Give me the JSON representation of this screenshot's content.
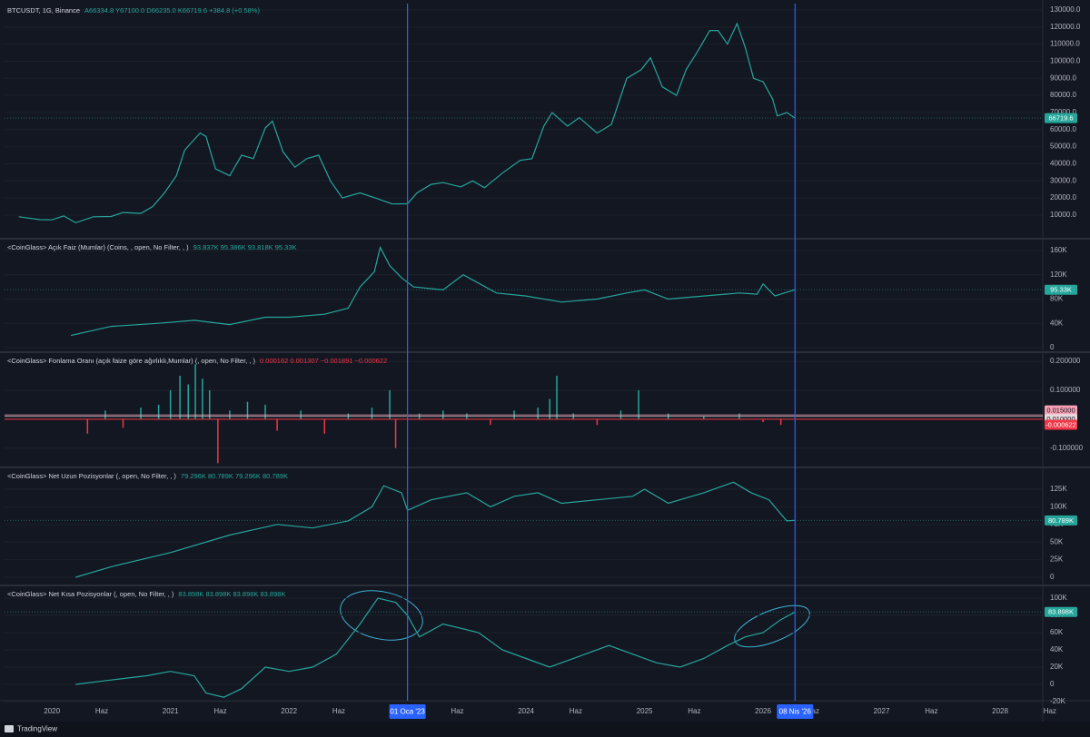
{
  "chart_data": [
    {
      "type": "line",
      "title": "BTCUSDT, 1G, Binance",
      "legend_values": "A66334.8 Y67100.0 D66235.0 K66719.6 +384.8 (+0.58%)",
      "color": "#26a69a",
      "x": [
        2019.72,
        2019.9,
        2020.0,
        2020.1,
        2020.2,
        2020.35,
        2020.5,
        2020.6,
        2020.75,
        2020.85,
        2020.95,
        2021.05,
        2021.12,
        2021.25,
        2021.3,
        2021.38,
        2021.5,
        2021.6,
        2021.7,
        2021.8,
        2021.86,
        2021.95,
        2022.05,
        2022.15,
        2022.25,
        2022.35,
        2022.45,
        2022.6,
        2022.75,
        2022.87,
        2023.0,
        2023.08,
        2023.2,
        2023.3,
        2023.45,
        2023.55,
        2023.65,
        2023.8,
        2023.95,
        2024.05,
        2024.15,
        2024.22,
        2024.35,
        2024.45,
        2024.6,
        2024.72,
        2024.85,
        2024.97,
        2025.05,
        2025.15,
        2025.27,
        2025.35,
        2025.45,
        2025.55,
        2025.62,
        2025.7,
        2025.78,
        2025.85,
        2025.92,
        2026.0,
        2026.08,
        2026.12,
        2026.2,
        2026.27
      ],
      "values": [
        9000,
        7300,
        7200,
        9500,
        5500,
        9000,
        9200,
        11500,
        11000,
        15000,
        23000,
        33000,
        48000,
        58000,
        56000,
        37000,
        33000,
        45000,
        43000,
        61000,
        65000,
        47000,
        38000,
        43000,
        45000,
        30000,
        20000,
        23000,
        19500,
        16500,
        16600,
        23000,
        28000,
        29000,
        26500,
        30000,
        26000,
        34500,
        42000,
        43000,
        62000,
        70000,
        62000,
        67000,
        58000,
        63000,
        90000,
        95000,
        102000,
        85000,
        80000,
        95000,
        106000,
        118000,
        118000,
        110000,
        122000,
        108000,
        90000,
        88000,
        78000,
        68000,
        70000,
        66719.6
      ],
      "ylim": [
        -3300,
        133700
      ],
      "yticks": [
        {
          "value": 10000,
          "label": "10000.0"
        },
        {
          "value": 20000,
          "label": "20000.0"
        },
        {
          "value": 30000,
          "label": "30000.0"
        },
        {
          "value": 40000,
          "label": "40000.0"
        },
        {
          "value": 50000,
          "label": "50000.0"
        },
        {
          "value": 60000,
          "label": "60000.0"
        },
        {
          "value": 70000,
          "label": "70000.0"
        },
        {
          "value": 80000,
          "label": "80000.0"
        },
        {
          "value": 90000,
          "label": "90000.0"
        },
        {
          "value": 100000,
          "label": "100000.0"
        },
        {
          "value": 110000,
          "label": "110000.0"
        },
        {
          "value": 120000,
          "label": "120000.0"
        },
        {
          "value": 130000,
          "label": "130000.0"
        }
      ],
      "last_value": {
        "value": 66719.6,
        "label": "66719.6",
        "color": "#26a69a"
      }
    },
    {
      "type": "line",
      "title": "<CoinGlass> Açık Faiz (Mumlar) (Coins, , open, No Filter, , )",
      "legend_values": "93.837K 95.386K 93.818K 95.33K",
      "color": "#26a69a",
      "x": [
        2020.16,
        2020.5,
        2020.9,
        2021.2,
        2021.5,
        2021.8,
        2022.0,
        2022.3,
        2022.5,
        2022.6,
        2022.72,
        2022.77,
        2022.85,
        2022.95,
        2023.05,
        2023.3,
        2023.47,
        2023.75,
        2024.0,
        2024.3,
        2024.6,
        2024.85,
        2025.0,
        2025.2,
        2025.5,
        2025.8,
        2025.95,
        2026.0,
        2026.1,
        2026.27
      ],
      "values": [
        20000,
        35000,
        40000,
        45000,
        38000,
        50000,
        50000,
        55000,
        65000,
        100000,
        125000,
        165000,
        135000,
        115000,
        100000,
        95000,
        120000,
        90000,
        85000,
        75000,
        80000,
        90000,
        95000,
        80000,
        85000,
        90000,
        88000,
        105000,
        85000,
        95330
      ],
      "ylim": [
        -7500,
        176400
      ],
      "yticks": [
        {
          "value": 0,
          "label": "0"
        },
        {
          "value": 40000,
          "label": "40K"
        },
        {
          "value": 80000,
          "label": "80K"
        },
        {
          "value": 120000,
          "label": "120K"
        },
        {
          "value": 160000,
          "label": "160K"
        }
      ],
      "last_value": {
        "value": 95330,
        "label": "95.33K",
        "color": "#26a69a"
      }
    },
    {
      "type": "bar",
      "title": "<CoinGlass> Fonlama Oranı (açık faize göre ağırlıklı,Mumlar) (, open, No Filter, , )",
      "legend_values": "0.000162 0.001307 −0.001891 −0.000622",
      "color": "#26a69a",
      "negative_color": "#f23645",
      "x": [
        2020.3,
        2020.45,
        2020.6,
        2020.75,
        2020.9,
        2021.0,
        2021.08,
        2021.15,
        2021.21,
        2021.27,
        2021.33,
        2021.4,
        2021.5,
        2021.65,
        2021.8,
        2021.9,
        2022.1,
        2022.3,
        2022.5,
        2022.7,
        2022.85,
        2022.9,
        2023.1,
        2023.3,
        2023.5,
        2023.7,
        2023.9,
        2024.1,
        2024.2,
        2024.26,
        2024.4,
        2024.6,
        2024.8,
        2024.95,
        2025.2,
        2025.5,
        2025.8,
        2026.0,
        2026.15,
        2026.27
      ],
      "values": [
        -0.05,
        0.03,
        -0.03,
        0.04,
        0.05,
        0.1,
        0.15,
        0.12,
        0.19,
        0.14,
        0.1,
        -0.152,
        0.03,
        0.06,
        0.05,
        -0.04,
        0.03,
        -0.05,
        0.02,
        0.04,
        0.1,
        -0.1,
        0.02,
        0.03,
        0.02,
        -0.02,
        0.03,
        0.04,
        0.07,
        0.15,
        0.02,
        -0.02,
        0.03,
        0.1,
        0.02,
        0.01,
        0.02,
        -0.01,
        -0.02,
        -0.000622
      ],
      "ylim": [
        -0.1667,
        0.2254
      ],
      "yticks": [
        {
          "value": -0.1,
          "label": "-0.100000"
        },
        {
          "value": 0.1,
          "label": "0.100000"
        },
        {
          "value": 0.2,
          "label": "0.200000"
        }
      ],
      "levels": [
        {
          "value": 0.015,
          "label": "0.015000",
          "color": "#f7a1b4"
        },
        {
          "value": 0.01,
          "label": "0.010000",
          "color": "#e9d7db"
        }
      ],
      "last_value": {
        "value": -0.000622,
        "label": "-0.000622",
        "color": "#f23645"
      }
    },
    {
      "type": "line",
      "title": "<CoinGlass> Net Uzun Pozisyonlar (, open, No Filter, , )",
      "legend_values": "79.296K 80.789K 79.296K 80.789K",
      "color": "#26a69a",
      "x": [
        2020.2,
        2020.5,
        2021.0,
        2021.5,
        2021.9,
        2022.2,
        2022.5,
        2022.7,
        2022.8,
        2022.95,
        2023.0,
        2023.2,
        2023.5,
        2023.7,
        2023.9,
        2024.1,
        2024.3,
        2024.6,
        2024.9,
        2025.0,
        2025.2,
        2025.5,
        2025.75,
        2025.9,
        2026.05,
        2026.15,
        2026.2,
        2026.27
      ],
      "values": [
        0,
        15000,
        35000,
        60000,
        75000,
        70000,
        80000,
        100000,
        130000,
        120000,
        95000,
        110000,
        120000,
        100000,
        115000,
        120000,
        105000,
        110000,
        115000,
        125000,
        105000,
        120000,
        135000,
        120000,
        110000,
        90000,
        80000,
        80789
      ],
      "ylim": [
        -11600,
        153400
      ],
      "yticks": [
        {
          "value": 0,
          "label": "0"
        },
        {
          "value": 25000,
          "label": "25K"
        },
        {
          "value": 50000,
          "label": "50K"
        },
        {
          "value": 75000,
          "label": "75K"
        },
        {
          "value": 100000,
          "label": "100K"
        },
        {
          "value": 125000,
          "label": "125K"
        }
      ],
      "last_value": {
        "value": 80789,
        "label": "80.789K",
        "color": "#26a69a"
      }
    },
    {
      "type": "line",
      "title": "<CoinGlass> Net Kısa Pozisyonlar (, open, No Filter, , )",
      "legend_values": "83.898K 83.898K 83.898K 83.898K",
      "color": "#26a69a",
      "x": [
        2020.2,
        2020.5,
        2020.8,
        2021.0,
        2021.2,
        2021.3,
        2021.45,
        2021.6,
        2021.8,
        2022.0,
        2022.2,
        2022.4,
        2022.6,
        2022.75,
        2022.9,
        2023.0,
        2023.1,
        2023.3,
        2023.6,
        2023.8,
        2024.0,
        2024.2,
        2024.5,
        2024.7,
        2024.9,
        2025.1,
        2025.3,
        2025.5,
        2025.7,
        2025.85,
        2026.0,
        2026.15,
        2026.27
      ],
      "values": [
        0,
        5000,
        10000,
        15000,
        10000,
        -10000,
        -15000,
        -5000,
        20000,
        15000,
        20000,
        35000,
        70000,
        100000,
        95000,
        80000,
        55000,
        70000,
        60000,
        40000,
        30000,
        20000,
        35000,
        45000,
        35000,
        25000,
        20000,
        30000,
        45000,
        55000,
        60000,
        75000,
        83898
      ],
      "ylim": [
        -19000,
        112600
      ],
      "yticks": [
        {
          "value": -20000,
          "label": "-20K"
        },
        {
          "value": 0,
          "label": "0"
        },
        {
          "value": 20000,
          "label": "20K"
        },
        {
          "value": 40000,
          "label": "40K"
        },
        {
          "value": 60000,
          "label": "60K"
        },
        {
          "value": 80000,
          "label": "80K"
        },
        {
          "value": 100000,
          "label": "100K"
        }
      ],
      "last_value": {
        "value": 83898,
        "label": "83.898K",
        "color": "#26a69a"
      }
    }
  ],
  "time_axis": {
    "xlim": [
      2019.6,
      2028.36
    ],
    "xticks": [
      {
        "value": 2020,
        "label": "2020"
      },
      {
        "value": 2020.42,
        "label": "Haz"
      },
      {
        "value": 2021,
        "label": "2021"
      },
      {
        "value": 2021.42,
        "label": "Haz"
      },
      {
        "value": 2022,
        "label": "2022"
      },
      {
        "value": 2022.42,
        "label": "Haz"
      },
      {
        "value": 2023.42,
        "label": "Haz"
      },
      {
        "value": 2024,
        "label": "2024"
      },
      {
        "value": 2024.42,
        "label": "Haz"
      },
      {
        "value": 2025,
        "label": "2025"
      },
      {
        "value": 2025.42,
        "label": "Haz"
      },
      {
        "value": 2026,
        "label": "2026"
      },
      {
        "value": 2026.42,
        "label": "Haz"
      },
      {
        "value": 2027,
        "label": "2027"
      },
      {
        "value": 2027.42,
        "label": "Haz"
      },
      {
        "value": 2028,
        "label": "2028"
      },
      {
        "value": 2028.42,
        "label": "Haz"
      }
    ],
    "markers": [
      {
        "value": 2023.0,
        "label": "01 Oca '23"
      },
      {
        "value": 2026.27,
        "label": "08 Nis '26"
      }
    ]
  },
  "footer": {
    "brand": "TradingView"
  }
}
